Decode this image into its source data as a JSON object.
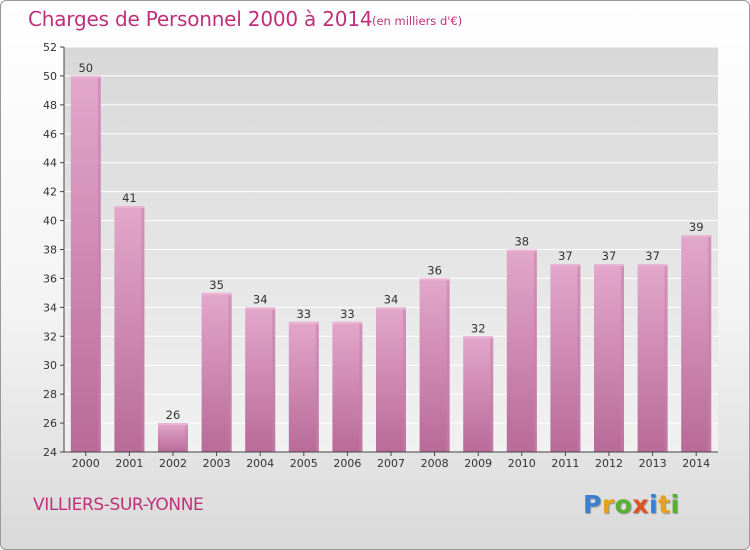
{
  "header": {
    "title": "Charges de Personnel 2000 à 2014",
    "subtitle": "(en milliers d'€)"
  },
  "footer": {
    "commune": "VILLIERS-SUR-YONNE",
    "logo_letters": [
      {
        "ch": "P",
        "color": "#3b7fd0"
      },
      {
        "ch": "r",
        "color": "#e8a020"
      },
      {
        "ch": "o",
        "color": "#58b030"
      },
      {
        "ch": "x",
        "color": "#e05020"
      },
      {
        "ch": "i",
        "color": "#3b7fd0"
      },
      {
        "ch": "t",
        "color": "#e8a020"
      },
      {
        "ch": "i",
        "color": "#58b030"
      }
    ]
  },
  "chart_data": {
    "type": "bar",
    "title": "Charges de Personnel 2000 à 2014",
    "subtitle": "(en milliers d'€)",
    "categories": [
      "2000",
      "2001",
      "2002",
      "2003",
      "2004",
      "2005",
      "2006",
      "2007",
      "2008",
      "2009",
      "2010",
      "2011",
      "2012",
      "2013",
      "2014"
    ],
    "values": [
      50,
      41,
      26,
      35,
      34,
      33,
      33,
      34,
      36,
      32,
      38,
      37,
      37,
      37,
      39
    ],
    "ylim": [
      24,
      52
    ],
    "yticks": [
      24,
      26,
      28,
      30,
      32,
      34,
      36,
      38,
      40,
      42,
      44,
      46,
      48,
      50,
      52
    ],
    "grid": true,
    "colors": {
      "bar_top": "#e3a7cb",
      "bar_bottom": "#b86a98",
      "bar_face": "#eab4d4",
      "bar_side": "#c581aa",
      "plot_bg_top": "#d8d8d8",
      "plot_bg_bottom": "#f1f1f1",
      "grid": "#ffffff",
      "axis": "#444444"
    }
  }
}
